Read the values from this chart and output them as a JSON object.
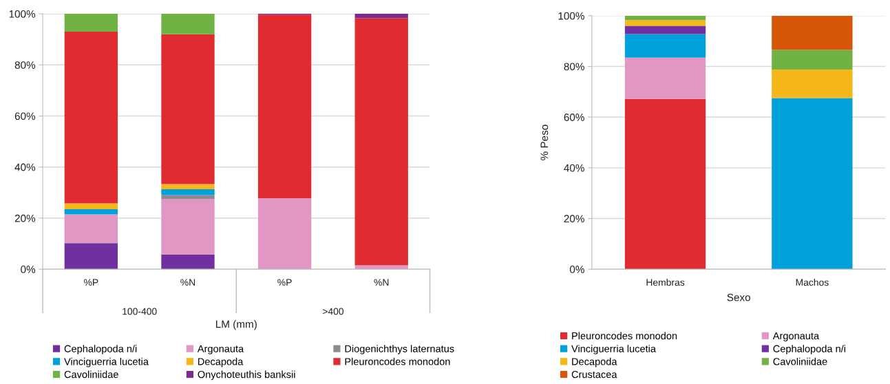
{
  "chart_data": [
    {
      "type": "bar",
      "stacked": true,
      "xlabel": "LM (mm)",
      "categories": [
        "%P",
        "%N",
        "%P",
        "%N"
      ],
      "annotations": [
        "100-400",
        ">400"
      ],
      "ylim": [
        0,
        100
      ],
      "yticks": [
        {
          "value": 0,
          "label": "0%"
        },
        {
          "value": 20,
          "label": "20%"
        },
        {
          "value": 40,
          "label": "40%"
        },
        {
          "value": 60,
          "label": "60%"
        },
        {
          "value": 80,
          "label": "80%"
        },
        {
          "value": 100,
          "label": "100%"
        }
      ],
      "grid": "y",
      "legend": "bottom",
      "series": [
        {
          "name": "Cephalopoda n/i",
          "color": "#7030a0",
          "values": [
            10.2,
            5.8,
            0,
            0
          ]
        },
        {
          "name": "Argonauta",
          "color": "#e196c4",
          "values": [
            11.3,
            21.7,
            27.8,
            1.5
          ]
        },
        {
          "name": "Diogenichthys laternatus",
          "color": "#8c8c8c",
          "values": [
            0,
            1.5,
            0,
            0
          ]
        },
        {
          "name": "Vinciguerria lucetia",
          "color": "#00a0dc",
          "values": [
            2,
            2.3,
            0,
            0
          ]
        },
        {
          "name": "Decapoda",
          "color": "#f5b71a",
          "values": [
            2.3,
            2,
            0,
            0
          ]
        },
        {
          "name": "Pleuroncodes monodon",
          "color": "#e02b30",
          "values": [
            67.2,
            58.7,
            71.9,
            96.8
          ]
        },
        {
          "name": "Cavoliniidae",
          "color": "#70b244",
          "values": [
            7,
            8,
            0,
            0
          ]
        },
        {
          "name": "Onychoteuthis banksii",
          "color": "#7b2c8e",
          "values": [
            0,
            0,
            0.3,
            1.7
          ]
        }
      ]
    },
    {
      "type": "bar",
      "stacked": true,
      "xlabel": "Sexo",
      "ylabel": "% Peso",
      "categories": [
        "Hembras",
        "Machos"
      ],
      "ylim": [
        0,
        100
      ],
      "yticks": [
        {
          "value": 0,
          "label": "0%"
        },
        {
          "value": 20,
          "label": "20%"
        },
        {
          "value": 40,
          "label": "40%"
        },
        {
          "value": 60,
          "label": "60%"
        },
        {
          "value": 80,
          "label": "80%"
        },
        {
          "value": 100,
          "label": "100%"
        }
      ],
      "grid": "y",
      "legend": "bottom",
      "series": [
        {
          "name": "Pleuroncodes monodon",
          "color": "#e02b30",
          "values": [
            67.2,
            0
          ]
        },
        {
          "name": "Argonauta",
          "color": "#e196c4",
          "values": [
            16.3,
            0
          ]
        },
        {
          "name": "Vinciguerria lucetia",
          "color": "#00a0dc",
          "values": [
            9.3,
            67.5
          ]
        },
        {
          "name": "Cephalopoda n/i",
          "color": "#7030a0",
          "values": [
            3.2,
            0
          ]
        },
        {
          "name": "Decapoda",
          "color": "#f5b71a",
          "values": [
            2.3,
            11.3
          ]
        },
        {
          "name": "Cavoliniidae",
          "color": "#70b244",
          "values": [
            1.7,
            7.7
          ]
        },
        {
          "name": "Crustacea",
          "color": "#d6570a",
          "values": [
            0,
            13.5
          ]
        }
      ]
    }
  ]
}
